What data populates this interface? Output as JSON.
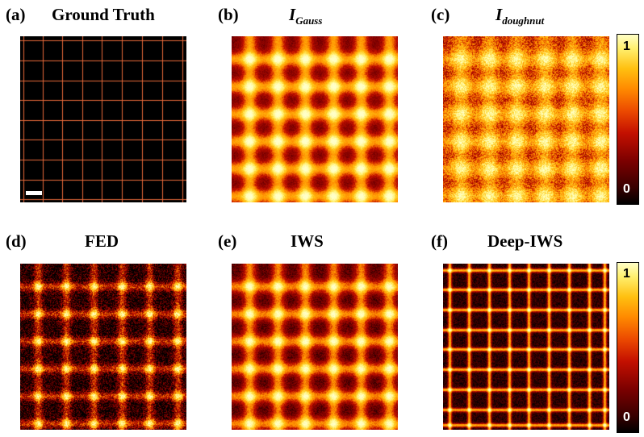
{
  "panels": [
    {
      "letter": "(a)",
      "title": "Ground Truth"
    },
    {
      "letter": "(b)",
      "title_main": "I",
      "title_sub": "Gauss"
    },
    {
      "letter": "(c)",
      "title_main": "I",
      "title_sub": "doughnut"
    },
    {
      "letter": "(d)",
      "title": "FED"
    },
    {
      "letter": "(e)",
      "title": "IWS"
    },
    {
      "letter": "(f)",
      "title": "Deep-IWS"
    }
  ],
  "colorbars": [
    {
      "max_label": "1",
      "min_label": "0"
    },
    {
      "max_label": "1",
      "min_label": "0"
    }
  ],
  "colormap": [
    "#000000",
    "#7a0000",
    "#c41000",
    "#ff8a00",
    "#ffc010",
    "#fff070",
    "#ffffc8"
  ]
}
